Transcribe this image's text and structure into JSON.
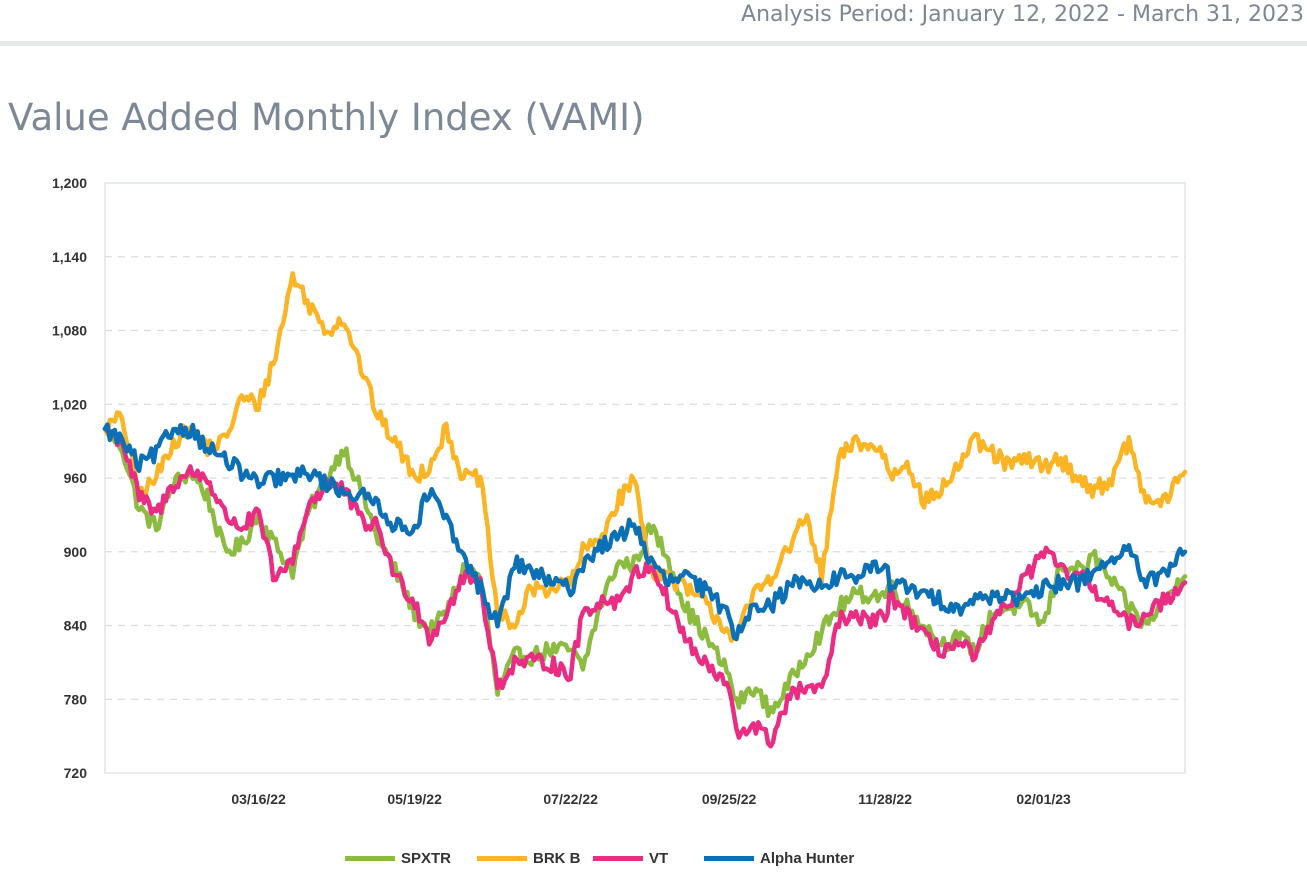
{
  "header": {
    "period": "Analysis Period: January 12, 2022 - March 31, 2023"
  },
  "chart_data": {
    "type": "line",
    "title": "Value Added Monthly Index (VAMI)",
    "ylim": [
      720,
      1200
    ],
    "y_ticks": [
      "720",
      "780",
      "840",
      "900",
      "960",
      "1,020",
      "1,080",
      "1,140",
      "1,200"
    ],
    "x_ticks": [
      "03/16/22",
      "05/19/22",
      "07/22/22",
      "09/25/22",
      "11/28/22",
      "02/01/23"
    ],
    "grid": true,
    "legend_position": "bottom",
    "colors": {
      "SPXTR": "#8cbc3f",
      "BRK B": "#fbb524",
      "VT": "#ea2c83",
      "Alpha Hunter": "#0c70b7"
    },
    "x": [
      "2022-01-12",
      "2022-01-19",
      "2022-01-26",
      "2022-02-02",
      "2022-02-09",
      "2022-02-16",
      "2022-02-23",
      "2022-03-02",
      "2022-03-09",
      "2022-03-16",
      "2022-03-23",
      "2022-03-30",
      "2022-04-06",
      "2022-04-13",
      "2022-04-20",
      "2022-04-27",
      "2022-05-04",
      "2022-05-11",
      "2022-05-19",
      "2022-05-25",
      "2022-06-01",
      "2022-06-08",
      "2022-06-15",
      "2022-06-22",
      "2022-06-29",
      "2022-07-06",
      "2022-07-13",
      "2022-07-22",
      "2022-07-27",
      "2022-08-03",
      "2022-08-10",
      "2022-08-17",
      "2022-08-24",
      "2022-08-31",
      "2022-09-07",
      "2022-09-14",
      "2022-09-25",
      "2022-09-28",
      "2022-10-05",
      "2022-10-12",
      "2022-10-19",
      "2022-10-26",
      "2022-11-02",
      "2022-11-09",
      "2022-11-16",
      "2022-11-28",
      "2022-11-30",
      "2022-12-07",
      "2022-12-14",
      "2022-12-21",
      "2022-12-28",
      "2023-01-04",
      "2023-01-11",
      "2023-01-18",
      "2023-01-25",
      "2023-02-01",
      "2023-02-08",
      "2023-02-15",
      "2023-02-22",
      "2023-03-01",
      "2023-03-08",
      "2023-03-15",
      "2023-03-22",
      "2023-03-31"
    ],
    "series": [
      {
        "name": "SPXTR",
        "values": [
          1000,
          985,
          935,
          920,
          955,
          965,
          945,
          900,
          905,
          930,
          905,
          885,
          935,
          960,
          985,
          950,
          910,
          885,
          850,
          835,
          850,
          885,
          880,
          785,
          815,
          815,
          820,
          820,
          805,
          855,
          890,
          890,
          920,
          895,
          855,
          835,
          800,
          775,
          790,
          770,
          790,
          815,
          835,
          855,
          865,
          865,
          875,
          855,
          840,
          825,
          830,
          820,
          850,
          855,
          855,
          840,
          890,
          885,
          895,
          875,
          855,
          840,
          860,
          880
        ]
      },
      {
        "name": "BRK B",
        "values": [
          1000,
          1010,
          945,
          960,
          990,
          1000,
          985,
          990,
          1025,
          1020,
          1060,
          1125,
          1100,
          1080,
          1090,
          1050,
          1010,
          990,
          960,
          970,
          1000,
          960,
          960,
          850,
          840,
          870,
          870,
          875,
          900,
          910,
          940,
          960,
          885,
          880,
          870,
          860,
          835,
          830,
          865,
          880,
          900,
          930,
          880,
          975,
          990,
          980,
          960,
          975,
          940,
          950,
          970,
          990,
          980,
          970,
          975,
          970,
          975,
          960,
          950,
          960,
          990,
          940,
          940,
          965
        ]
      },
      {
        "name": "VT",
        "values": [
          1000,
          990,
          945,
          930,
          955,
          965,
          960,
          930,
          920,
          930,
          875,
          895,
          940,
          955,
          950,
          925,
          920,
          880,
          860,
          830,
          850,
          880,
          875,
          790,
          810,
          810,
          810,
          800,
          850,
          860,
          860,
          880,
          890,
          860,
          830,
          810,
          790,
          750,
          760,
          745,
          780,
          790,
          785,
          845,
          845,
          845,
          865,
          850,
          830,
          820,
          825,
          815,
          840,
          860,
          880,
          900,
          885,
          880,
          870,
          855,
          840,
          850,
          860,
          875
        ]
      },
      {
        "name": "Alpha Hunter",
        "values": [
          1000,
          990,
          970,
          980,
          1000,
          1000,
          985,
          975,
          965,
          955,
          960,
          960,
          965,
          955,
          950,
          945,
          940,
          920,
          920,
          950,
          925,
          895,
          870,
          840,
          890,
          885,
          875,
          870,
          890,
          905,
          910,
          925,
          890,
          875,
          880,
          870,
          850,
          830,
          860,
          855,
          870,
          880,
          870,
          880,
          880,
          890,
          875,
          870,
          865,
          860,
          855,
          860,
          865,
          865,
          860,
          870,
          875,
          875,
          885,
          895,
          900,
          875,
          880,
          900
        ]
      }
    ]
  }
}
